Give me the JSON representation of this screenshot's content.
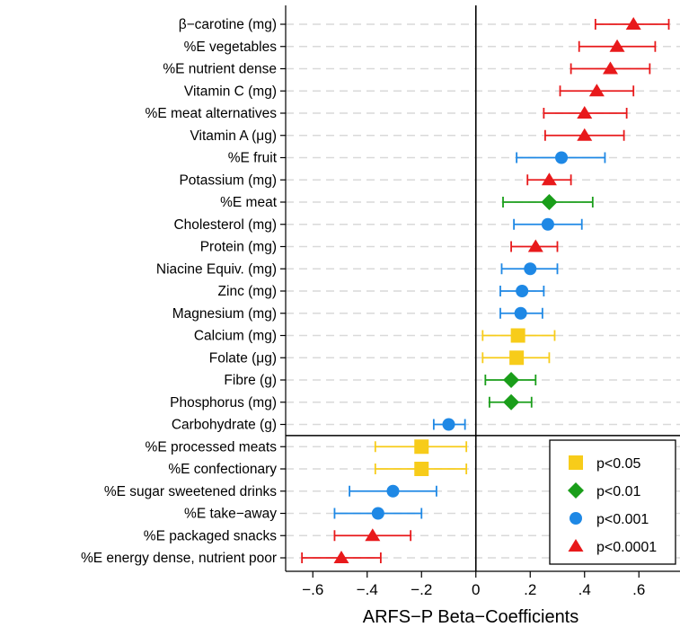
{
  "chart_data": {
    "type": "scatter",
    "subtype": "coefficient-plot",
    "orientation": "horizontal",
    "title": "",
    "xlabel": "ARFS−P Beta−Coefficients",
    "ylabel": "",
    "xlim": [
      -0.7,
      0.72
    ],
    "xticks": [
      -0.6,
      -0.4,
      -0.2,
      0,
      0.2,
      0.4,
      0.6
    ],
    "xtick_labels": [
      "−.6",
      "−.4",
      "−.2",
      "0",
      ".2",
      ".4",
      ".6"
    ],
    "grid": "horizontal dashed",
    "legend_position": "bottom-right",
    "legend": [
      {
        "label": "p<0.05",
        "marker": "square",
        "color": "#F7CC1A"
      },
      {
        "label": "p<0.01",
        "marker": "diamond",
        "color": "#1A9E1A"
      },
      {
        "label": "p<0.001",
        "marker": "circle",
        "color": "#1E88E5"
      },
      {
        "label": "p<0.0001",
        "marker": "triangle",
        "color": "#E8191B"
      }
    ],
    "rows": [
      {
        "label": "β−carotine (mg)",
        "estimate": 0.58,
        "ci_low": 0.44,
        "ci_high": 0.71,
        "sig": 3
      },
      {
        "label": "%E vegetables",
        "estimate": 0.52,
        "ci_low": 0.38,
        "ci_high": 0.66,
        "sig": 3
      },
      {
        "label": "%E nutrient dense",
        "estimate": 0.495,
        "ci_low": 0.35,
        "ci_high": 0.64,
        "sig": 3
      },
      {
        "label": "Vitamin C (mg)",
        "estimate": 0.445,
        "ci_low": 0.31,
        "ci_high": 0.58,
        "sig": 3
      },
      {
        "label": "%E meat alternatives",
        "estimate": 0.4,
        "ci_low": 0.25,
        "ci_high": 0.555,
        "sig": 3
      },
      {
        "label": "Vitamin A (μg)",
        "estimate": 0.4,
        "ci_low": 0.255,
        "ci_high": 0.545,
        "sig": 3
      },
      {
        "label": "%E fruit",
        "estimate": 0.315,
        "ci_low": 0.15,
        "ci_high": 0.475,
        "sig": 2
      },
      {
        "label": "Potassium (mg)",
        "estimate": 0.27,
        "ci_low": 0.19,
        "ci_high": 0.35,
        "sig": 3
      },
      {
        "label": "%E meat",
        "estimate": 0.27,
        "ci_low": 0.1,
        "ci_high": 0.43,
        "sig": 1
      },
      {
        "label": "Cholesterol (mg)",
        "estimate": 0.265,
        "ci_low": 0.14,
        "ci_high": 0.39,
        "sig": 2
      },
      {
        "label": "Protein (mg)",
        "estimate": 0.22,
        "ci_low": 0.13,
        "ci_high": 0.3,
        "sig": 3
      },
      {
        "label": "Niacine Equiv. (mg)",
        "estimate": 0.2,
        "ci_low": 0.095,
        "ci_high": 0.3,
        "sig": 2
      },
      {
        "label": "Zinc (mg)",
        "estimate": 0.17,
        "ci_low": 0.09,
        "ci_high": 0.25,
        "sig": 2
      },
      {
        "label": "Magnesium (mg)",
        "estimate": 0.165,
        "ci_low": 0.09,
        "ci_high": 0.245,
        "sig": 2
      },
      {
        "label": "Calcium (mg)",
        "estimate": 0.155,
        "ci_low": 0.025,
        "ci_high": 0.29,
        "sig": 0
      },
      {
        "label": "Folate (μg)",
        "estimate": 0.15,
        "ci_low": 0.025,
        "ci_high": 0.27,
        "sig": 0
      },
      {
        "label": "Fibre (g)",
        "estimate": 0.13,
        "ci_low": 0.035,
        "ci_high": 0.22,
        "sig": 1
      },
      {
        "label": "Phosphorus (mg)",
        "estimate": 0.13,
        "ci_low": 0.05,
        "ci_high": 0.205,
        "sig": 1
      },
      {
        "label": "Carbohydrate (g)",
        "estimate": -0.1,
        "ci_low": -0.155,
        "ci_high": -0.04,
        "sig": 2
      },
      {
        "label": "%E processed meats",
        "estimate": -0.2,
        "ci_low": -0.37,
        "ci_high": -0.035,
        "sig": 0
      },
      {
        "label": "%E confectionary",
        "estimate": -0.2,
        "ci_low": -0.37,
        "ci_high": -0.035,
        "sig": 0
      },
      {
        "label": "%E sugar sweetened drinks",
        "estimate": -0.305,
        "ci_low": -0.465,
        "ci_high": -0.145,
        "sig": 2
      },
      {
        "label": "%E take−away",
        "estimate": -0.36,
        "ci_low": -0.52,
        "ci_high": -0.2,
        "sig": 2
      },
      {
        "label": "%E packaged snacks",
        "estimate": -0.38,
        "ci_low": -0.52,
        "ci_high": -0.24,
        "sig": 3
      },
      {
        "label": "%E energy dense, nutrient poor",
        "estimate": -0.495,
        "ci_low": -0.64,
        "ci_high": -0.35,
        "sig": 3
      }
    ],
    "divider_after_row": 18
  }
}
